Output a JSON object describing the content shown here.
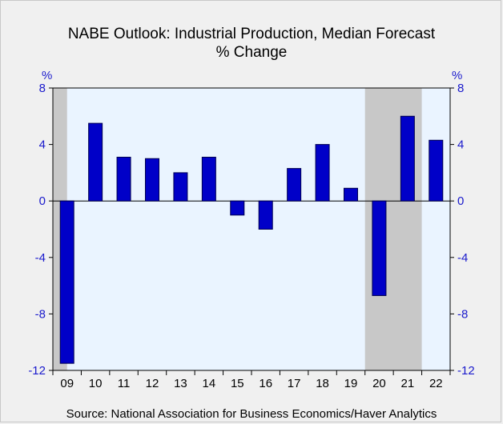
{
  "header": {
    "title": "NABE Outlook: Industrial Production, Median Forecast",
    "subtitle": "% Change"
  },
  "units": {
    "left": "%",
    "right": "%"
  },
  "footer": {
    "source": "Source:  National Association for Business Economics/Haver Analytics"
  },
  "colors": {
    "bar": "#0000c8",
    "bar_stroke": "#000050",
    "plot_bg": "#eaf4ff",
    "recession_shade": "#c8c8c8",
    "axis_text": "#1a1acc"
  },
  "chart_data": {
    "type": "bar",
    "title": "NABE Outlook: Industrial Production, Median Forecast",
    "subtitle": "% Change",
    "categories": [
      "09",
      "10",
      "11",
      "12",
      "13",
      "14",
      "15",
      "16",
      "17",
      "18",
      "19",
      "20",
      "21",
      "22"
    ],
    "values": [
      -11.5,
      5.5,
      3.1,
      3.0,
      2.0,
      3.1,
      -1.0,
      -2.0,
      2.3,
      4.0,
      0.9,
      -6.7,
      6.0,
      4.3
    ],
    "ylim": [
      -12,
      8
    ],
    "yticks": [
      8,
      4,
      0,
      -4,
      -8,
      -12
    ],
    "ytick_labels": [
      "8",
      "4",
      "0",
      "-4",
      "-8",
      "-12"
    ],
    "y_axis_right_mirrored": true,
    "xlabel": "",
    "ylabel": "%",
    "grid": false,
    "recession_shading": [
      {
        "start": "09",
        "end": "09",
        "fraction": 0.5,
        "note": "2009 recession"
      },
      {
        "start": "20",
        "end": "21",
        "fraction": 1.0,
        "note": "2020 recession"
      }
    ],
    "zero_line": true
  }
}
